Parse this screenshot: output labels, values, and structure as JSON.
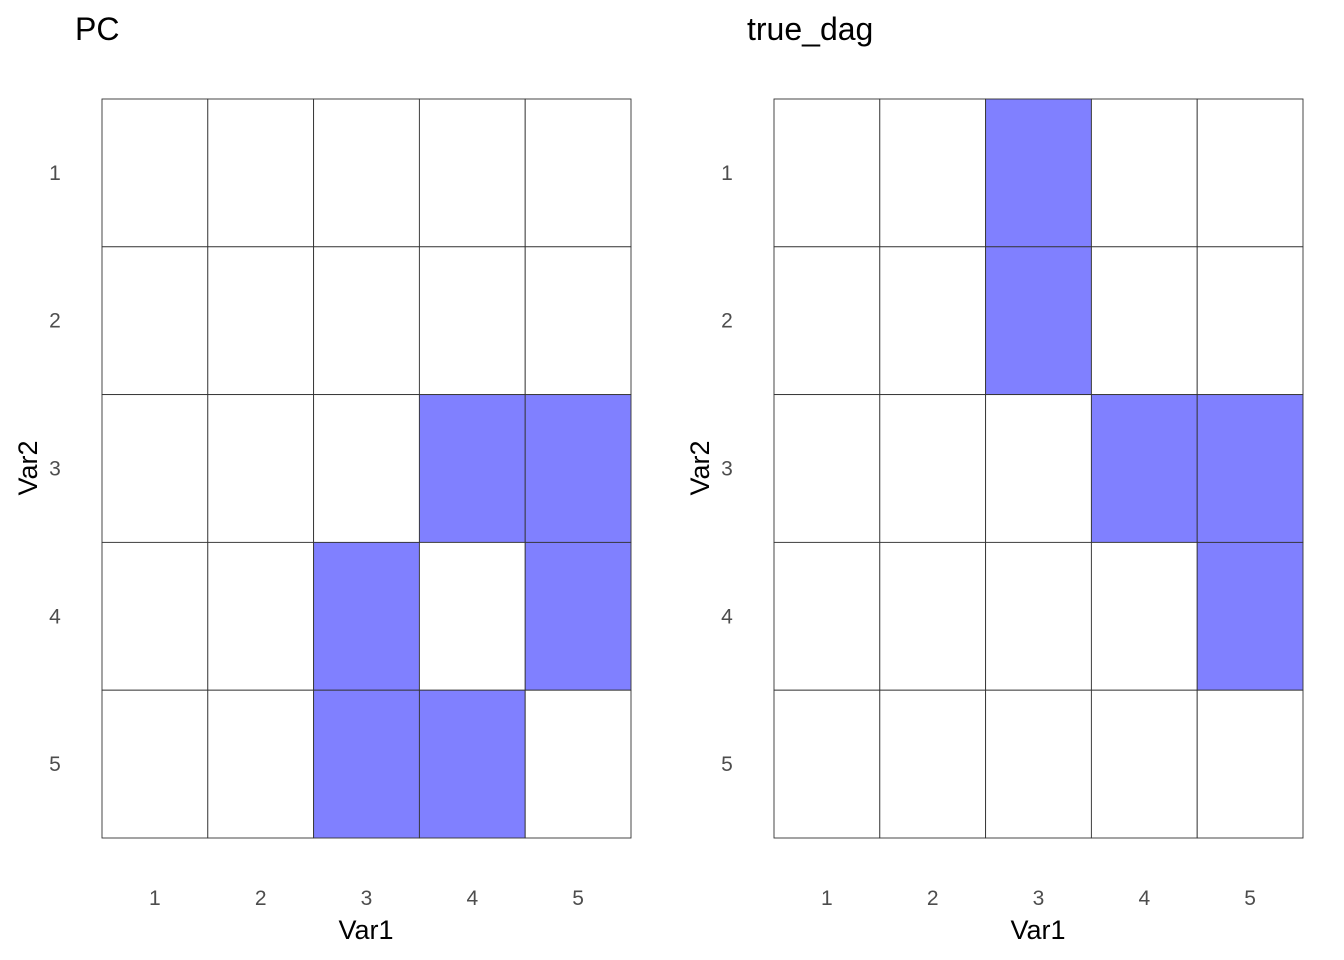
{
  "chart_data": [
    {
      "type": "heatmap",
      "title": "PC",
      "xlabel": "Var1",
      "ylabel": "Var2",
      "x_categories": [
        "1",
        "2",
        "3",
        "4",
        "5"
      ],
      "y_categories": [
        "1",
        "2",
        "3",
        "4",
        "5"
      ],
      "values": [
        [
          0,
          0,
          0,
          0,
          0
        ],
        [
          0,
          0,
          0,
          0,
          0
        ],
        [
          0,
          0,
          0,
          1,
          1
        ],
        [
          0,
          0,
          1,
          0,
          1
        ],
        [
          0,
          0,
          1,
          1,
          0
        ]
      ],
      "grid": true,
      "legend": "none"
    },
    {
      "type": "heatmap",
      "title": "true_dag",
      "xlabel": "Var1",
      "ylabel": "Var2",
      "x_categories": [
        "1",
        "2",
        "3",
        "4",
        "5"
      ],
      "y_categories": [
        "1",
        "2",
        "3",
        "4",
        "5"
      ],
      "values": [
        [
          0,
          0,
          1,
          0,
          0
        ],
        [
          0,
          0,
          1,
          0,
          0
        ],
        [
          0,
          0,
          0,
          1,
          1
        ],
        [
          0,
          0,
          0,
          0,
          1
        ],
        [
          0,
          0,
          0,
          0,
          0
        ]
      ],
      "grid": true,
      "legend": "none"
    }
  ],
  "colors": {
    "filled": "#8080ff",
    "empty": "#ffffff",
    "grid_line": "#333333"
  }
}
